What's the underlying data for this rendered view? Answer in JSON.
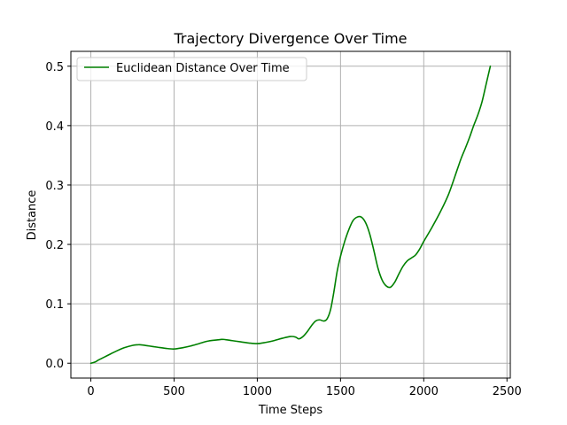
{
  "chart_data": {
    "type": "line",
    "title": "Trajectory Divergence Over Time",
    "xlabel": "Time Steps",
    "ylabel": "Distance",
    "xlim": [
      -120,
      2520
    ],
    "ylim": [
      -0.025,
      0.525
    ],
    "xticks": [
      0,
      500,
      1000,
      1500,
      2000,
      2500
    ],
    "xtick_labels": [
      "0",
      "500",
      "1000",
      "1500",
      "2000",
      "2500"
    ],
    "yticks": [
      0.0,
      0.1,
      0.2,
      0.3,
      0.4,
      0.5
    ],
    "ytick_labels": [
      "0.0",
      "0.1",
      "0.2",
      "0.3",
      "0.4",
      "0.5"
    ],
    "grid": true,
    "legend_position": "upper-left",
    "series": [
      {
        "name": "Euclidean Distance Over Time",
        "color": "#008000",
        "x": [
          0,
          25,
          50,
          100,
          150,
          200,
          250,
          280,
          300,
          350,
          400,
          450,
          500,
          550,
          600,
          650,
          700,
          750,
          780,
          800,
          850,
          900,
          950,
          1000,
          1050,
          1100,
          1150,
          1200,
          1230,
          1250,
          1275,
          1300,
          1325,
          1350,
          1375,
          1400,
          1420,
          1440,
          1460,
          1480,
          1500,
          1525,
          1550,
          1575,
          1600,
          1625,
          1650,
          1675,
          1700,
          1725,
          1750,
          1775,
          1800,
          1825,
          1850,
          1875,
          1900,
          1925,
          1950,
          1975,
          2000,
          2050,
          2100,
          2150,
          2200,
          2225,
          2250,
          2275,
          2300,
          2325,
          2350,
          2375,
          2400
        ],
        "y": [
          0.0,
          0.002,
          0.006,
          0.013,
          0.02,
          0.026,
          0.03,
          0.031,
          0.031,
          0.029,
          0.027,
          0.025,
          0.024,
          0.026,
          0.029,
          0.033,
          0.037,
          0.039,
          0.04,
          0.04,
          0.038,
          0.036,
          0.034,
          0.033,
          0.035,
          0.038,
          0.042,
          0.045,
          0.044,
          0.041,
          0.045,
          0.053,
          0.063,
          0.071,
          0.073,
          0.071,
          0.075,
          0.09,
          0.12,
          0.155,
          0.18,
          0.205,
          0.225,
          0.24,
          0.246,
          0.246,
          0.237,
          0.218,
          0.19,
          0.16,
          0.14,
          0.13,
          0.128,
          0.136,
          0.15,
          0.163,
          0.172,
          0.177,
          0.182,
          0.192,
          0.205,
          0.229,
          0.255,
          0.285,
          0.325,
          0.345,
          0.362,
          0.38,
          0.4,
          0.418,
          0.44,
          0.47,
          0.5
        ]
      }
    ]
  }
}
